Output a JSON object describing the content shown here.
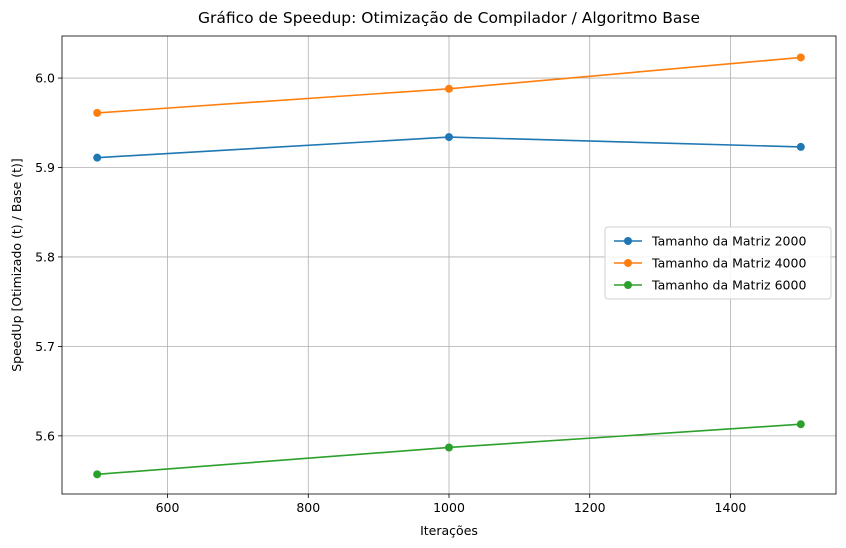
{
  "chart_data": {
    "type": "line",
    "title": "Gráfico de Speedup: Otimização de Compilador / Algoritmo Base",
    "xlabel": "Iterações",
    "ylabel": "SpeedUp [Otimizado (t) / Base (t)]",
    "x": [
      500,
      1000,
      1500
    ],
    "xlim": [
      450,
      1550
    ],
    "ylim": [
      5.535,
      6.047
    ],
    "xticks": [
      600,
      800,
      1000,
      1200,
      1400
    ],
    "yticks": [
      5.6,
      5.7,
      5.8,
      5.9,
      6.0
    ],
    "xtick_labels": [
      "600",
      "800",
      "1000",
      "1200",
      "1400"
    ],
    "ytick_labels": [
      "5.6",
      "5.7",
      "5.8",
      "5.9",
      "6.0"
    ],
    "grid": true,
    "legend_position": "center-right",
    "series": [
      {
        "name": "Tamanho da Matriz 2000",
        "color": "#1f77b4",
        "values": [
          5.911,
          5.934,
          5.923
        ]
      },
      {
        "name": "Tamanho da Matriz 4000",
        "color": "#ff7f0e",
        "values": [
          5.961,
          5.988,
          6.023
        ]
      },
      {
        "name": "Tamanho da Matriz 6000",
        "color": "#2ca02c",
        "values": [
          5.557,
          5.587,
          5.613
        ]
      }
    ]
  }
}
